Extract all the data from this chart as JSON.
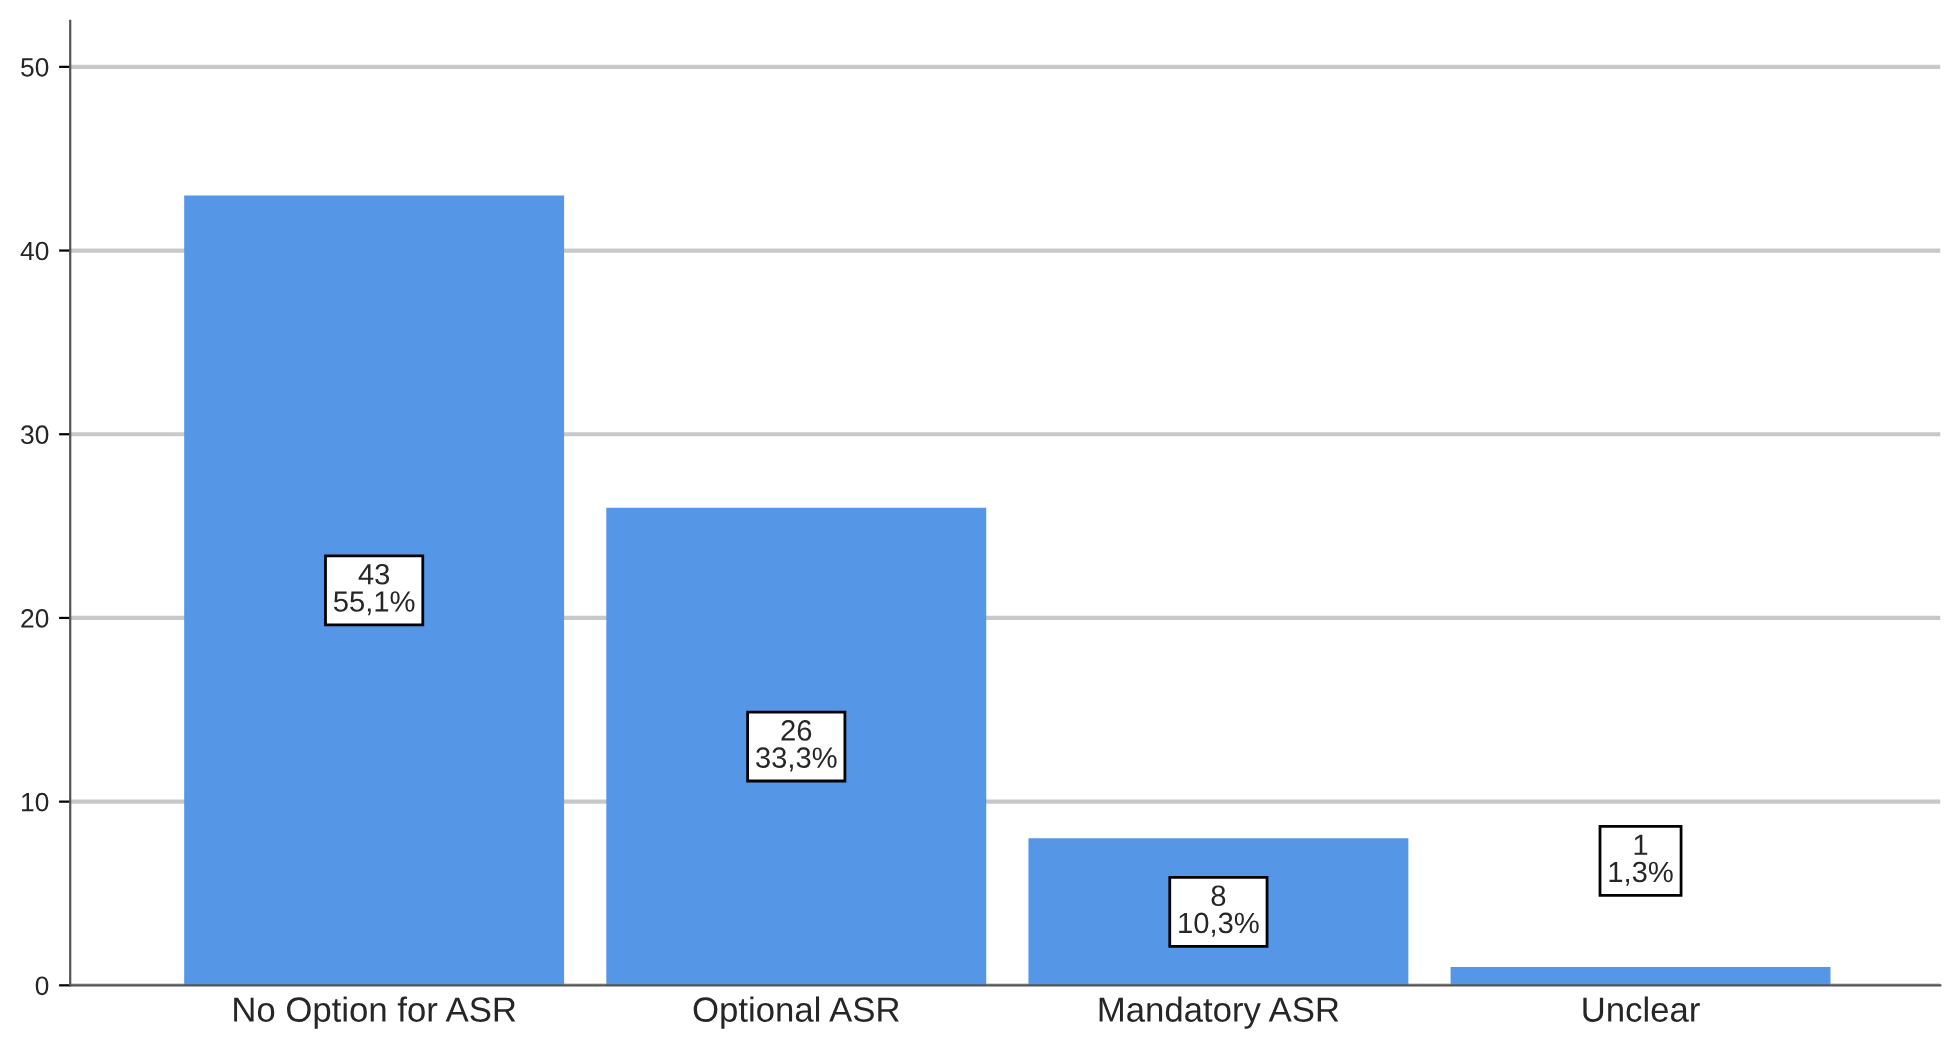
{
  "chart_data": {
    "type": "bar",
    "categories": [
      "No Option for ASR",
      "Optional ASR",
      "Mandatory ASR",
      "Unclear"
    ],
    "values": [
      43,
      26,
      8,
      1
    ],
    "color": "#5596e6",
    "value_labels": [
      "43\n55,1%",
      "26\n33,3%",
      "8\n10,3%",
      "1\n1,3%"
    ],
    "ylim": [
      0,
      52.5
    ],
    "yticks": [
      0,
      10,
      20,
      30,
      40,
      50
    ],
    "grid": "y",
    "legend": false
  }
}
